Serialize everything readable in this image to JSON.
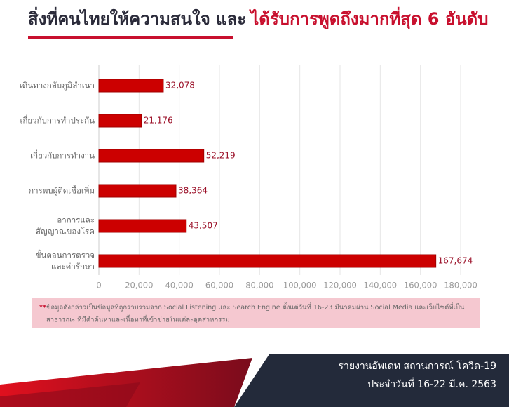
{
  "title": [
    "สิ่งที่คนไทยให้ความสนใจ และ",
    "ได้รับการพูดถึงมากที่สุด 6 อันดับ"
  ],
  "chart_data": {
    "type": "bar",
    "orientation": "horizontal",
    "color": "#cc0000",
    "categories": [
      [
        "เดินทางกลับภูมิลำเนา"
      ],
      [
        "เกี่ยวกับการทำประกัน"
      ],
      [
        "เกี่ยวกับการทำงาน"
      ],
      [
        "การพบผู้ติดเชื้อเพิ่ม"
      ],
      [
        "อาการและ",
        "สัญญาณของโรค"
      ],
      [
        "ขั้นตอนการตรวจ",
        "และค่ารักษา"
      ]
    ],
    "values": [
      32078,
      21176,
      52219,
      38364,
      43507,
      167674
    ],
    "value_labels": [
      "32,078",
      "21,176",
      "52,219",
      "38,364",
      "43,507",
      "167,674"
    ],
    "xlim": [
      0,
      180000
    ],
    "xticks": [
      0,
      {
        "value": 20000,
        "label": "20,000"
      },
      {
        "value": 40000,
        "label": "40,000"
      },
      {
        "value": 60000,
        "label": "60,000"
      },
      {
        "value": 80000,
        "label": "80,000"
      },
      {
        "value": 100000,
        "label": "100,000"
      },
      {
        "value": 120000,
        "label": "120,000"
      },
      {
        "value": 140000,
        "label": "140,000"
      },
      {
        "value": 160000,
        "label": "160,000"
      },
      {
        "value": 180000,
        "label": "180,000"
      }
    ],
    "grid": true
  },
  "note": {
    "marker": "**",
    "lines": [
      "ข้อมูลดังกล่าวเป็นข้อมูลที่ถูกรวบรวมจาก Social Listening และ Search Engine ตั้งแต่วันที่ 16-23 มีนาคมผ่าน Social Media และเว็บไซต์ที่เป็น",
      "สาธารณะ ที่มีคำค้นหาและเนื้อหาที่เข้าข่ายในแต่ละอุตสาหกรรม"
    ]
  },
  "footer": [
    "รายงานอัพเดท  สถานการณ์ โควิด-19",
    "ประจำวันที่ 16-22 มี.ค. 2563"
  ]
}
